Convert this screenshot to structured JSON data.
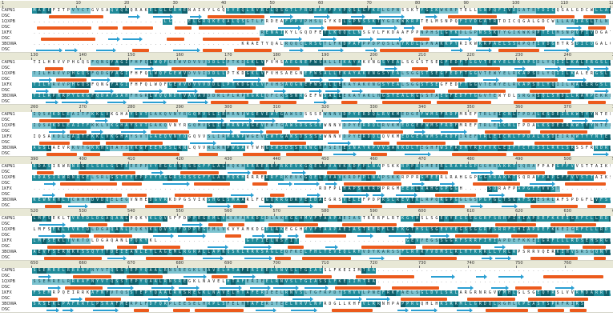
{
  "row_labels": [
    "CAPN1",
    "DSC",
    "1QXPB",
    "DSC",
    "1KFX",
    "DSC",
    "3BOWA",
    "DSC"
  ],
  "blocks": [
    {
      "ticks": [
        "1",
        "10",
        "20",
        "30",
        "40",
        "50",
        "60",
        "70",
        "80",
        "90",
        "100",
        "110",
        "120"
      ],
      "seqs": [
        "MAEEFITPVYCTGVSAQVQKQRAKELGLGRHENAIKYLGQDYEQLRVRCLQSGTLFRDEAFPPVPQSLGFKELGPNSSKTYGIKWKRPTELLSNPQFIVDGATRTDICQGALGDCWLLAAIASLTLNE",
        "...........................LG...ELGRQKEQALQSGTLFRDEAFPPVPHSLGYKDLGPNSSKTYGIKWKRPTELMSNPQFIVDGATRTDICQGALGDCWLLAAIASLTLN",
        "...............................................RENAIKYLGQDFETLKQQCLNSGVLFKDAAFPPNPHSLGYKDLGPNSSKTYGIKWKRPTELMSNPQFIVDGATRTDICQGALGDCWLLAAIASLTLN",
        "...........................................KRAETYQALRQQCLRSGTLFKDPAFPPDPQSLAYKDLGPNAKKPYRIKWKRPAELSSRPQFIVDGHTRSDICQGALGDCWLLAALASL"
      ]
    },
    {
      "ticks": [
        "130",
        "140",
        "150",
        "160",
        "170",
        "180",
        "190",
        "200",
        "210",
        "220",
        "230",
        "240",
        "250"
      ],
      "seqs": [
        "TILHRVVPHGQSFQNGYAGIFHFQLWQFGEWVDVVVDDLLPTKDGKLVFVHSAEGNEFWSALLEKAYAKVNGSYEALSGGSTSEGFEDFTGGVTEWYELRKAPSDLYQIILKALERGSLLGCSIDIS",
        "TILHRVVPHGQSFQDGYAGIFHFQLWQFGEWVDVVIDDLLPTKDGKLVFVHSAEGNEFWSALLEKAYAKVNGSYEALSGGSTSEGFEDFTGGVTEWYELRKAPSDLYQIILKALERGSLLGCSIDIS",
        "TILHRVVPHGQSFQNGYAGIFHFQLWQFGEWVDVVVDDLLPTKDGKLVFVHSAQGNEFWSALLEKAYAKVNGSYEALSGGSTSEGFEDFTGGVTEWYELRKAPSDLYQIILKALERGSLLGCSIDIS",
        "TILRPHRPYGRGFQDAYSAHFHGRLWQQNDTVAVAVDDRLPLRPHGRLQFCRSSNRGEFWSALLEKAYAKLHGSYEALRGGSTAEGFEDFTGGVTEWYDLSRGRSQLSHDLLRAMPEKRLLGGSLWAA"
      ]
    },
    {
      "ticks": [
        "260",
        "270",
        "280",
        "290",
        "300",
        "310",
        "320",
        "330",
        "340",
        "350",
        "360",
        "370",
        "380"
      ],
      "seqs": [
        "IQSAKDLEAITFKKLVKGHAYSVTGAKQVNYRGQMVSLIRMRNPWGEVEWTGAWSDSSSEWNNVDPYERDQLRVKMEDGEFWMSFRDFMREFTRLEICNLTPDALKSDEIRKWTYYNTEFNRQLPAGNCF",
        "IQSAKDLEAITFKKLVKGHAYSVTGAKQVNYRGQMVSLIRMRNPWGEVEWTGAWSDSSSEWNNVDPYERDQLRVKMEDGEFWMSFRDFMREFTRLEICNLTPDALKSDEIRKWTYYNTEFNRQLPAGNCF",
        "IQSAKDLEAITFKKLVKGHAYSVTGAEQVNYQGQVVSLIRMRNPWGEVEWTGAWSDSSSEWNNVDPYERDQLQVKMEDGEFWMSFRDFIREFTRLEICNLTPDALKSDEIRKWTYYNTEFN.........",
        "AGSLAEVRKVTGKKHGHAYSVKGFEEMSSLRNLQVVRLRNPWGAVTWHGEWSDSSRNWCNPSIYESNAYRPVVSANKDLTEGHFWSFRDMYRDFVKLEIFTCTDSSLRKLSRSSFRNDRLR......."
      ]
    },
    {
      "ticks": [
        "390",
        "400",
        "410",
        "420",
        "430",
        "440",
        "450",
        "460",
        "470",
        "480",
        "490",
        "500",
        "510"
      ],
      "seqs": [
        "RDASIRWRNRGELSRLGSTEEEPPVYEGGRSRSSGFFLALMQKHRRRERRFRKEVKGQELPVAVKRDFPLNAPSKKRPPRGMEERLRAHGGPGGHRAKKTSQRAFPAPGFFVVSTTAIKSPLPLARYLQLTD",
        "RDASIRWRNRGELSRLGSTEEEPPVYEGGRSRSSGFFLALMQKHRRRERRFRKEVKGQELPVAVKRDFPLNAPSKKRPPRGMEERLRAHGGPGGHRAKKTSQRAFPAPGFFVVSTTAIKSPLPLARYLQLTD",
        "...........................................................RDFPLHAPSKKRPPRGMEERLRAHGGPGGH.....SQRAFPAPGFFVVST........................",
        "KEWNRHLTCWHHDVDQELEGVNHEDGVRKDPGSVIKGHGLSMAARLFCGQRRGDRVEIDAEGRSVELEFPDPRSLREVTKLRPQRGPGGLGSPGPGLTSGAFSAESRLAFSPDGFLVFSGVAPSPSSGS"
      ]
    },
    {
      "ticks": [
        "520",
        "530",
        "540",
        "550",
        "560",
        "570",
        "580",
        "590",
        "600",
        "610",
        "620",
        "630",
        "640"
      ],
      "seqs": [
        "LMFSEKLTVKTDLDGAQANLPQKYKLQVSFFDPPEGEMLVKVYAMKDGDLAKEGGHMVFTAAPAEIASTRERFLRTKGTHSLSGEVYEGSSGGRFSRRFIHIAPDEFKKEIGRFCLLRDSEHSRGRPRLFTL",
        "LMFSEKLTVKTDLDGAQANLPQKYKLQVSFFDPPEGEMLVKVYAMKDGDLAKEGGHMVFTAAPAEIASTRERFLRTKGTHSLSGEVYEGSSGGRFSRRFIHIAPDEFKKEIGRFCLLRDSEHSRGRPRLFTL",
        "LMFSEKLTVKTDLDGAQANLPQKYKL..................GTFIELNSFIT......................GEVYEGSSGGRFSRRFIHIAPDEFKKEIGRFCLLRDSEHSRGRPRLFTLNVAEGH",
        "AEVFSERNKKSSQYTTDEIEANLETLAGEMLRGRALLAPNQSKLRRKSAGLEQFKELFHLTEVEQLRHVDYKARSSFLRHRYVDMSLRLHTKRRLLYRLRPSRRVQERKIHVSRSGQNYRCGRGLFGRSPSA"
      ]
    },
    {
      "ticks": [
        "650",
        "660",
        "670",
        "680",
        "690",
        "700",
        "710",
        "720",
        "730",
        "740",
        "750",
        "760"
      ],
      "seqs": [
        "SSEMRELRRKAFNYVTQSSTEPYQAALRNSREGKLNAVELHTAFERIEELRNVSLTGIASSLFKEIIMTRA.........................................",
        "SSEMRELRRKAFNYVTQSSTEPYQAALRNSREGKLNAVELHTAFERIEELRNVSLTGIASSLFKEIIMTRA.........................................",
        "FSEMRPQEIRRKAFNYVTQSSTEPYQAALRNSREGKLNAVELHTAFERIEELRNVSLTGFRPDYSHVVLPNEFRKFAELSGLDVLSRLARGRNRGVYMHLGLSGEQYRSLVVRMDARRTRDTGKLRLLPEALFRH",
        "SRSEKLPAFKRTLPSRAFMERPLFDFQRPLEESELHRPLSFELHTAFERITEELNRVLNPRDGLLKHFVLRRNHPAPPRGQHLHRSRRMLLGRDQLRGHLKPEASYSPRFRIRS"
      ]
    }
  ]
}
